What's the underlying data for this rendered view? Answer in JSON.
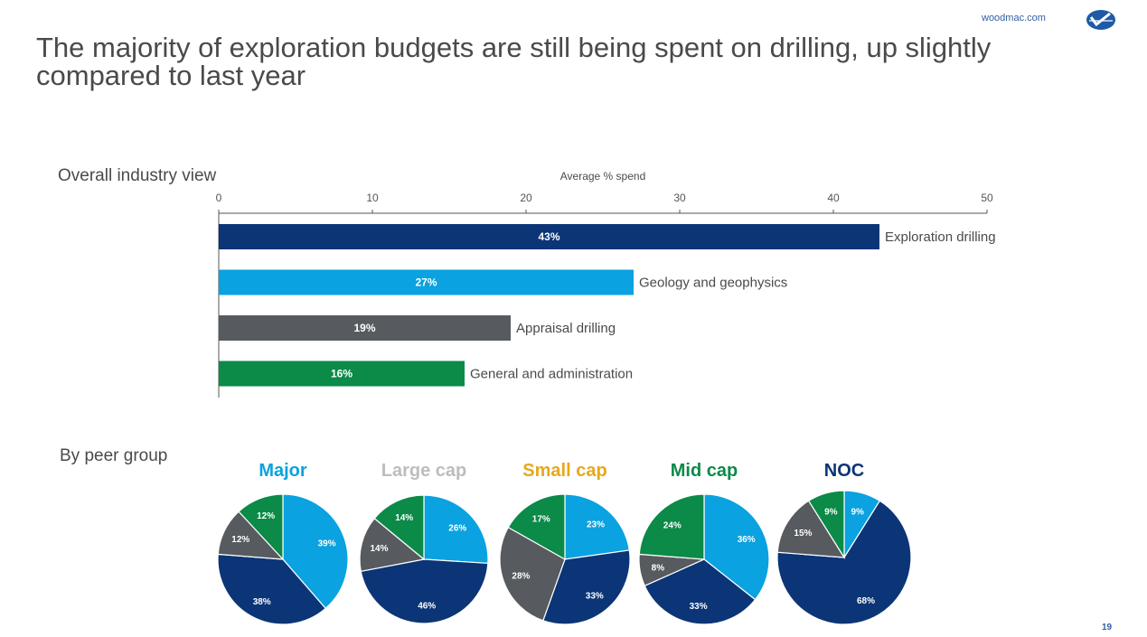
{
  "header": {
    "site": "woodmac.com",
    "title": "The majority of exploration budgets are still being spent on drilling, up slightly compared to last year",
    "page_number": "19"
  },
  "sections": {
    "overall": "Overall industry view",
    "peer": "By peer group"
  },
  "colors": {
    "exploration_drilling": "#0b3576",
    "geology_geophysics": "#0aa2e0",
    "appraisal_drilling": "#575a5e",
    "general_admin": "#0b8a48",
    "large_cap_title": "#bdbdbd",
    "small_cap_title": "#e6a81e"
  },
  "chart_data": [
    {
      "type": "bar",
      "orientation": "horizontal",
      "xlabel": "Average % spend",
      "xlim": [
        0,
        50
      ],
      "xticks": [
        "0",
        "10",
        "20",
        "30",
        "40",
        "50"
      ],
      "categories": [
        "Exploration drilling",
        "Geology and geophysics",
        "Appraisal drilling",
        "General and administration"
      ],
      "values": [
        43,
        27,
        19,
        16
      ],
      "data_labels": [
        "43%",
        "27%",
        "19%",
        "16%"
      ],
      "colors": [
        "#0b3576",
        "#0aa2e0",
        "#575a5e",
        "#0b8a48"
      ]
    },
    {
      "type": "pie",
      "title": "Major",
      "title_color": "#0aa2e0",
      "slices": [
        {
          "category": "Geology and geophysics",
          "value": 39,
          "label": "39%",
          "color": "#0aa2e0"
        },
        {
          "category": "Exploration drilling",
          "value": 38,
          "label": "38%",
          "color": "#0b3576"
        },
        {
          "category": "Appraisal drilling",
          "value": 12,
          "label": "12%",
          "color": "#575a5e"
        },
        {
          "category": "General and administration",
          "value": 12,
          "label": "12%",
          "color": "#0b8a48"
        }
      ]
    },
    {
      "type": "pie",
      "title": "Large cap",
      "title_color": "#bdbdbd",
      "slices": [
        {
          "category": "Geology and geophysics",
          "value": 26,
          "label": "26%",
          "color": "#0aa2e0"
        },
        {
          "category": "Exploration drilling",
          "value": 46,
          "label": "46%",
          "color": "#0b3576"
        },
        {
          "category": "Appraisal drilling",
          "value": 14,
          "label": "14%",
          "color": "#575a5e"
        },
        {
          "category": "General and administration",
          "value": 14,
          "label": "14%",
          "color": "#0b8a48"
        }
      ]
    },
    {
      "type": "pie",
      "title": "Small cap",
      "title_color": "#e6a81e",
      "slices": [
        {
          "category": "Geology and geophysics",
          "value": 23,
          "label": "23%",
          "color": "#0aa2e0"
        },
        {
          "category": "Exploration drilling",
          "value": 33,
          "label": "33%",
          "color": "#0b3576"
        },
        {
          "category": "Appraisal drilling",
          "value": 28,
          "label": "28%",
          "color": "#575a5e"
        },
        {
          "category": "General and administration",
          "value": 17,
          "label": "17%",
          "color": "#0b8a48"
        }
      ]
    },
    {
      "type": "pie",
      "title": "Mid cap",
      "title_color": "#0b8a48",
      "slices": [
        {
          "category": "Geology and geophysics",
          "value": 36,
          "label": "36%",
          "color": "#0aa2e0"
        },
        {
          "category": "Exploration drilling",
          "value": 33,
          "label": "33%",
          "color": "#0b3576"
        },
        {
          "category": "Appraisal drilling",
          "value": 8,
          "label": "8%",
          "color": "#575a5e"
        },
        {
          "category": "General and administration",
          "value": 24,
          "label": "24%",
          "color": "#0b8a48"
        }
      ]
    },
    {
      "type": "pie",
      "title": "NOC",
      "title_color": "#0b3576",
      "slices": [
        {
          "category": "Geology and geophysics",
          "value": 9,
          "label": "9%",
          "color": "#0aa2e0"
        },
        {
          "category": "Exploration drilling",
          "value": 68,
          "label": "68%",
          "color": "#0b3576"
        },
        {
          "category": "Appraisal drilling",
          "value": 15,
          "label": "15%",
          "color": "#575a5e"
        },
        {
          "category": "General and administration",
          "value": 9,
          "label": "9%",
          "color": "#0b8a48"
        }
      ]
    }
  ]
}
